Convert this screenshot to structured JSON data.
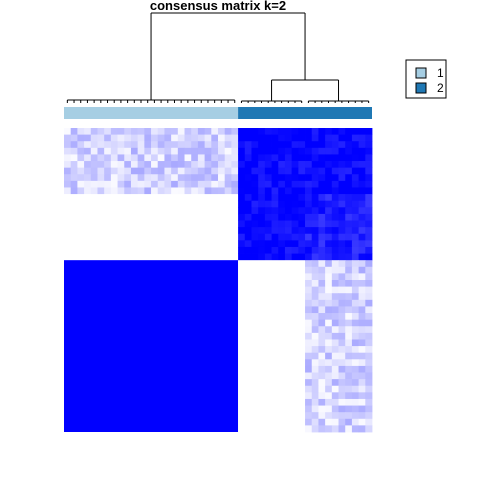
{
  "chart_data": {
    "type": "heatmap",
    "title": "consensus matrix k=2",
    "value_range": [
      0,
      1
    ],
    "color_low": "#FFFFFF",
    "color_high": "#0000FF",
    "cluster_colors": {
      "1": "#A6CEE3",
      "2": "#1F78B4"
    },
    "legend": {
      "position": "top-right",
      "entries": [
        {
          "label": "1",
          "color": "#A6CEE3"
        },
        {
          "label": "2",
          "color": "#1F78B4"
        }
      ]
    },
    "samples": {
      "cluster_1_count": 26,
      "cluster_2a_count": 10,
      "cluster_2b_count": 10
    },
    "blocks": [
      {
        "rows": "cluster_2a",
        "cols": "cluster_1",
        "mean": 0.18,
        "note": "light speckled"
      },
      {
        "rows": "cluster_2a",
        "cols": "cluster_2a",
        "mean": 0.97
      },
      {
        "rows": "cluster_2a",
        "cols": "cluster_2b",
        "mean": 0.97
      },
      {
        "rows": "cluster_2b",
        "cols": "cluster_1",
        "mean": 0.0
      },
      {
        "rows": "cluster_2b",
        "cols": "cluster_2a",
        "mean": 0.97
      },
      {
        "rows": "cluster_2b",
        "cols": "cluster_2b",
        "mean": 0.88
      },
      {
        "rows": "cluster_1",
        "cols": "cluster_1",
        "mean": 1.0
      },
      {
        "rows": "cluster_1",
        "cols": "cluster_2a",
        "mean": 0.0
      },
      {
        "rows": "cluster_1",
        "cols": "cluster_2b",
        "mean": 0.18,
        "note": "light speckled"
      }
    ]
  }
}
